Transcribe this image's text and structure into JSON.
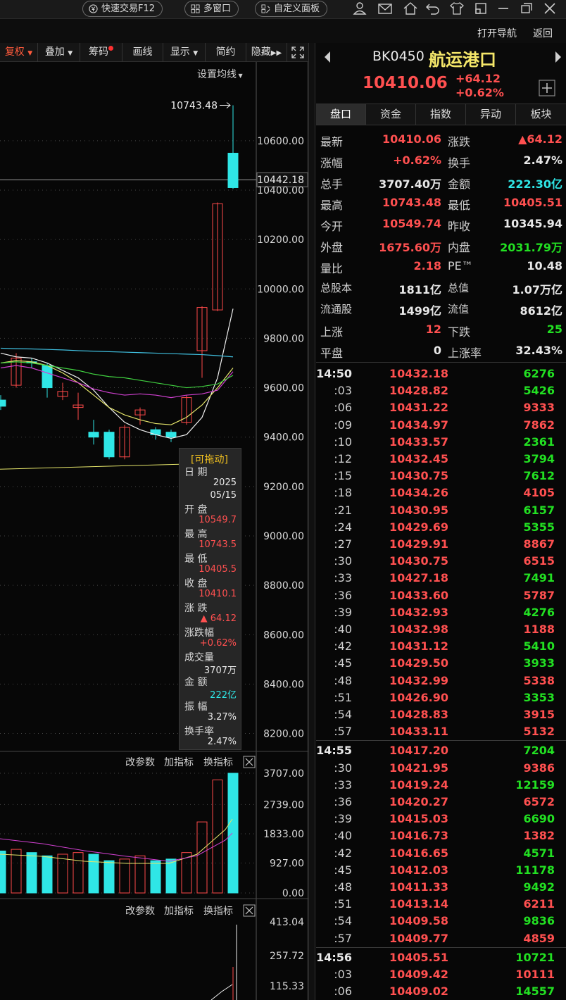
{
  "topbar": {
    "quick_trade": "快速交易F12",
    "multi_window": "多窗口",
    "custom_panel": "自定义面板",
    "icons": [
      "user-icon",
      "mail-icon",
      "home-icon",
      "back-icon",
      "shirt-icon",
      "restore-icon",
      "minimize-icon",
      "maximize-icon",
      "close-icon"
    ]
  },
  "nav": {
    "open_nav": "打开导航",
    "back": "返回"
  },
  "chart_toolbar": {
    "items": [
      "复权",
      "叠加",
      "筹码",
      "画线",
      "显示",
      "简约",
      "隐藏"
    ],
    "setting_ma": "设置均线"
  },
  "chart": {
    "price_axis": [
      "10600.00",
      "10442.18",
      "10400.00",
      "10200.00",
      "10000.00",
      "9800.00",
      "9600.00",
      "9400.00",
      "9200.00",
      "9000.00",
      "8800.00",
      "8600.00",
      "8400.00",
      "8200.00"
    ],
    "high_label": "10743.48",
    "vol_axis": [
      "3707.00",
      "2739.00",
      "1833.00",
      "927.00",
      "0.00"
    ],
    "ind_axis": [
      "413.04",
      "257.72",
      "115.33"
    ],
    "panel_buttons": [
      "改参数",
      "加指标",
      "换指标"
    ],
    "accent_up": "#ff4a4a",
    "accent_down": "#2fe6e6"
  },
  "chart_data": {
    "type": "candlestick",
    "visible_range": {
      "ylim": [
        8150,
        10820
      ]
    },
    "candles": [
      {
        "o": 9550,
        "c": 9525,
        "h": 9570,
        "l": 9510
      },
      {
        "o": 9610,
        "c": 9720,
        "h": 9740,
        "l": 9600
      },
      {
        "o": 9705,
        "c": 9700,
        "h": 9720,
        "l": 9680
      },
      {
        "o": 9690,
        "c": 9600,
        "h": 9700,
        "l": 9560
      },
      {
        "o": 9565,
        "c": 9585,
        "h": 9620,
        "l": 9550
      },
      {
        "o": 9520,
        "c": 9530,
        "h": 9580,
        "l": 9470
      },
      {
        "o": 9420,
        "c": 9400,
        "h": 9470,
        "l": 9370
      },
      {
        "o": 9420,
        "c": 9320,
        "h": 9430,
        "l": 9310
      },
      {
        "o": 9320,
        "c": 9440,
        "h": 9450,
        "l": 9310
      },
      {
        "o": 9490,
        "c": 9510,
        "h": 9520,
        "l": 9450
      },
      {
        "o": 9430,
        "c": 9410,
        "h": 9440,
        "l": 9390
      },
      {
        "o": 9420,
        "c": 9400,
        "h": 9430,
        "l": 9380
      },
      {
        "o": 9460,
        "c": 9560,
        "h": 9570,
        "l": 9450
      },
      {
        "o": 9750,
        "c": 9925,
        "h": 9930,
        "l": 9640
      },
      {
        "o": 9915,
        "c": 10345,
        "h": 10350,
        "l": 9910
      },
      {
        "o": 10549.74,
        "c": 10410.06,
        "h": 10743.48,
        "l": 10405.51
      }
    ],
    "volumes": [
      1300,
      1350,
      1250,
      1150,
      1200,
      1250,
      1200,
      1000,
      1050,
      1150,
      1000,
      1050,
      1250,
      2200,
      3500,
      3707
    ]
  },
  "tooltip": {
    "header": "[可拖动]",
    "date_label": "日 期",
    "date_year": "2025",
    "date_md": "05/15",
    "open_label": "开 盘",
    "open": "10549.7",
    "high_label": "最 高",
    "high": "10743.5",
    "low_label": "最 低",
    "low": "10405.5",
    "close_label": "收 盘",
    "close": "10410.1",
    "chg_label": "涨 跌",
    "chg": "▲ 64.12",
    "pct_label": "涨跌幅",
    "pct": "+0.62%",
    "vol_label": "成交量",
    "vol": "3707万",
    "amt_label": "金 额",
    "amt": "222亿",
    "amp_label": "振 幅",
    "amp": "3.27%",
    "turn_label": "换手率",
    "turn": "2.47%"
  },
  "header": {
    "code": "BK0450",
    "name": "航运港口",
    "price": "10410.06",
    "change": "+64.12",
    "pct": "+0.62%"
  },
  "tabs": [
    "盘口",
    "资金",
    "指数",
    "异动",
    "板块"
  ],
  "quote": [
    {
      "l1": "最新",
      "v1": "10410.06",
      "c1": "red",
      "l2": "涨跌",
      "v2": "▲64.12",
      "c2": "red"
    },
    {
      "l1": "涨幅",
      "v1": "+0.62%",
      "c1": "red",
      "l2": "换手",
      "v2": "2.47%",
      "c2": "white"
    },
    {
      "l1": "总手",
      "v1": "3707.40万",
      "c1": "white",
      "l2": "金额",
      "v2": "222.30亿",
      "c2": "cyan"
    },
    {
      "l1": "最高",
      "v1": "10743.48",
      "c1": "red",
      "l2": "最低",
      "v2": "10405.51",
      "c2": "red"
    },
    {
      "l1": "今开",
      "v1": "10549.74",
      "c1": "red",
      "l2": "昨收",
      "v2": "10345.94",
      "c2": "white"
    },
    {
      "l1": "外盘",
      "v1": "1675.60万",
      "c1": "red",
      "l2": "内盘",
      "v2": "2031.79万",
      "c2": "grn"
    },
    {
      "l1": "量比",
      "v1": "2.18",
      "c1": "red",
      "l2": "PE™",
      "v2": "10.48",
      "c2": "white"
    },
    {
      "l1": "总股本",
      "v1": "1811亿",
      "c1": "white",
      "l2": "总值",
      "v2": "1.07万亿",
      "c2": "white"
    },
    {
      "l1": "流通股",
      "v1": "1499亿",
      "c1": "white",
      "l2": "流值",
      "v2": "8612亿",
      "c2": "white"
    },
    {
      "l1": "上涨",
      "v1": "12",
      "c1": "red",
      "l2": "下跌",
      "v2": "25",
      "c2": "grn"
    },
    {
      "l1": "平盘",
      "v1": "0",
      "c1": "white",
      "l2": "上涨率",
      "v2": "32.43%",
      "c2": "white"
    }
  ],
  "ticks": [
    {
      "t": "14:50",
      "p": "10432.18",
      "v": "6276",
      "vc": "grn",
      "big": true
    },
    {
      "t": ":03",
      "p": "10428.82",
      "v": "5426",
      "vc": "grn"
    },
    {
      "t": ":06",
      "p": "10431.22",
      "v": "9333",
      "vc": "red"
    },
    {
      "t": ":09",
      "p": "10434.97",
      "v": "7862",
      "vc": "red"
    },
    {
      "t": ":10",
      "p": "10433.57",
      "v": "2361",
      "vc": "grn"
    },
    {
      "t": ":12",
      "p": "10432.45",
      "v": "3794",
      "vc": "grn"
    },
    {
      "t": ":15",
      "p": "10430.75",
      "v": "7612",
      "vc": "grn"
    },
    {
      "t": ":18",
      "p": "10434.26",
      "v": "4105",
      "vc": "red"
    },
    {
      "t": ":21",
      "p": "10430.95",
      "v": "6157",
      "vc": "grn"
    },
    {
      "t": ":24",
      "p": "10429.69",
      "v": "5355",
      "vc": "grn"
    },
    {
      "t": ":27",
      "p": "10429.91",
      "v": "8867",
      "vc": "red"
    },
    {
      "t": ":30",
      "p": "10430.75",
      "v": "6515",
      "vc": "red"
    },
    {
      "t": ":33",
      "p": "10427.18",
      "v": "7491",
      "vc": "grn"
    },
    {
      "t": ":36",
      "p": "10433.60",
      "v": "5787",
      "vc": "red"
    },
    {
      "t": ":39",
      "p": "10432.93",
      "v": "4276",
      "vc": "grn"
    },
    {
      "t": ":40",
      "p": "10432.98",
      "v": "1188",
      "vc": "red"
    },
    {
      "t": ":42",
      "p": "10431.12",
      "v": "5410",
      "vc": "grn"
    },
    {
      "t": ":45",
      "p": "10429.50",
      "v": "3933",
      "vc": "grn"
    },
    {
      "t": ":48",
      "p": "10432.99",
      "v": "5338",
      "vc": "red"
    },
    {
      "t": ":51",
      "p": "10426.90",
      "v": "3353",
      "vc": "grn"
    },
    {
      "t": ":54",
      "p": "10428.83",
      "v": "3915",
      "vc": "red"
    },
    {
      "t": ":57",
      "p": "10433.11",
      "v": "5132",
      "vc": "red"
    },
    {
      "t": "14:55",
      "p": "10417.20",
      "v": "7204",
      "vc": "grn",
      "big": true
    },
    {
      "t": ":30",
      "p": "10421.95",
      "v": "9386",
      "vc": "red"
    },
    {
      "t": ":33",
      "p": "10419.24",
      "v": "12159",
      "vc": "grn"
    },
    {
      "t": ":36",
      "p": "10420.27",
      "v": "6572",
      "vc": "red"
    },
    {
      "t": ":39",
      "p": "10415.03",
      "v": "6690",
      "vc": "grn"
    },
    {
      "t": ":40",
      "p": "10416.73",
      "v": "1382",
      "vc": "red"
    },
    {
      "t": ":42",
      "p": "10416.65",
      "v": "4571",
      "vc": "grn"
    },
    {
      "t": ":45",
      "p": "10412.03",
      "v": "11178",
      "vc": "grn"
    },
    {
      "t": ":48",
      "p": "10411.33",
      "v": "9492",
      "vc": "grn"
    },
    {
      "t": ":51",
      "p": "10413.14",
      "v": "6211",
      "vc": "red"
    },
    {
      "t": ":54",
      "p": "10409.58",
      "v": "9836",
      "vc": "grn"
    },
    {
      "t": ":57",
      "p": "10409.77",
      "v": "4859",
      "vc": "red"
    },
    {
      "t": "14:56",
      "p": "10405.51",
      "v": "10721",
      "vc": "grn",
      "big": true
    },
    {
      "t": ":03",
      "p": "10409.42",
      "v": "10111",
      "vc": "red"
    },
    {
      "t": ":06",
      "p": "10409.02",
      "v": "14557",
      "vc": "grn"
    }
  ]
}
